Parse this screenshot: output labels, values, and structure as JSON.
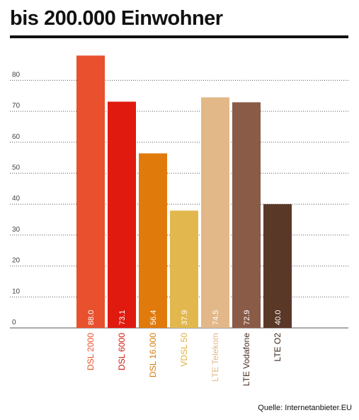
{
  "header": {
    "title": "bis 200.000 Einwohner"
  },
  "footer": {
    "source": "Quelle: Internetanbieter.EU"
  },
  "chart_data": {
    "type": "bar",
    "title": "bis 200.000 Einwohner",
    "xlabel": "",
    "ylabel": "",
    "ylim": [
      0,
      90
    ],
    "yticks": [
      0,
      10,
      20,
      30,
      40,
      50,
      60,
      70,
      80
    ],
    "grid": true,
    "categories": [
      "DSL 2000",
      "DSL 6000",
      "DSL 16.000",
      "VDSL 50",
      "LTE Telekom",
      "LTE Vodafone",
      "LTE O2"
    ],
    "values": [
      88.0,
      73.1,
      56.4,
      37.9,
      74.5,
      72.9,
      40.0
    ],
    "data_labels": [
      "88.0",
      "73.1",
      "56.4",
      "37.9",
      "74.5",
      "72.9",
      "40.0"
    ],
    "colors": [
      "#e8502e",
      "#e01a0f",
      "#e07a0b",
      "#e2b84e",
      "#e2b888",
      "#8a5b47",
      "#5a3828"
    ],
    "label_colors": [
      "#e8502e",
      "#cc1a0f",
      "#d87a0b",
      "#e0b040",
      "#e2b888",
      "#4a3025",
      "#3a2518"
    ]
  }
}
